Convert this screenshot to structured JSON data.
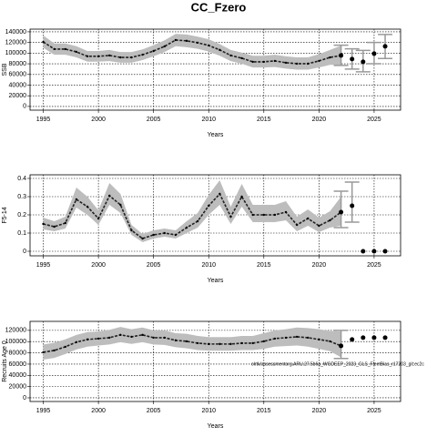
{
  "title": "CC_Fzero",
  "chart_data": [
    {
      "type": "line",
      "xlabel": "Years",
      "ylabel": "SSB",
      "xlim": [
        1993.8,
        2027.4
      ],
      "xticks": [
        1995,
        2000,
        2005,
        2010,
        2015,
        2020,
        2025
      ],
      "ylim": [
        -7000,
        145000
      ],
      "yticks": [
        0,
        20000,
        40000,
        60000,
        80000,
        100000,
        120000,
        140000
      ],
      "grid": true,
      "x": [
        1995,
        1996,
        1997,
        1998,
        1999,
        2000,
        2001,
        2002,
        2003,
        2004,
        2005,
        2006,
        2007,
        2008,
        2009,
        2010,
        2011,
        2012,
        2013,
        2014,
        2015,
        2016,
        2017,
        2018,
        2019,
        2020,
        2021,
        2022
      ],
      "values": [
        121000,
        107600,
        107600,
        102400,
        94000,
        94000,
        95600,
        92000,
        92000,
        97000,
        104000,
        112700,
        124600,
        123000,
        119500,
        114400,
        106000,
        95600,
        90500,
        83700,
        83700,
        85400,
        82000,
        80200,
        80200,
        85400,
        92000,
        95600
      ],
      "lower": [
        110000,
        97000,
        97000,
        92000,
        84000,
        84000,
        85000,
        82000,
        82000,
        87000,
        94000,
        102000,
        113000,
        111000,
        108000,
        103000,
        95000,
        85000,
        80000,
        73000,
        73000,
        74000,
        71000,
        69000,
        69000,
        73000,
        78000,
        78000
      ],
      "upper": [
        133000,
        118000,
        118000,
        113000,
        104000,
        104000,
        106000,
        102000,
        102000,
        107000,
        115000,
        124000,
        136000,
        135000,
        131000,
        126000,
        117000,
        106000,
        101000,
        95000,
        95000,
        97000,
        94000,
        92000,
        92000,
        98000,
        106000,
        114000
      ],
      "projection": {
        "x": [
          2022,
          2023,
          2024,
          2025,
          2026
        ],
        "values": [
          95600,
          88800,
          83700,
          99000,
          112700
        ],
        "lower": [
          77000,
          70000,
          65000,
          80000,
          90000
        ],
        "upper": [
          115000,
          108000,
          105000,
          120000,
          135000
        ]
      }
    },
    {
      "type": "line",
      "xlabel": "Years",
      "ylabel": "F5-14",
      "xlim": [
        1993.8,
        2027.4
      ],
      "xticks": [
        1995,
        2000,
        2005,
        2010,
        2015,
        2020,
        2025
      ],
      "ylim": [
        -0.025,
        0.42
      ],
      "yticks": [
        0,
        0.1,
        0.2,
        0.3,
        0.4
      ],
      "grid": true,
      "x": [
        1995,
        1996,
        1997,
        1998,
        1999,
        2000,
        2001,
        2002,
        2003,
        2004,
        2005,
        2006,
        2007,
        2008,
        2009,
        2010,
        2011,
        2012,
        2013,
        2014,
        2015,
        2016,
        2017,
        2018,
        2019,
        2020,
        2021,
        2022
      ],
      "values": [
        0.15,
        0.135,
        0.155,
        0.285,
        0.245,
        0.18,
        0.305,
        0.255,
        0.115,
        0.07,
        0.09,
        0.1,
        0.09,
        0.13,
        0.165,
        0.25,
        0.315,
        0.19,
        0.3,
        0.2,
        0.2,
        0.2,
        0.215,
        0.145,
        0.18,
        0.14,
        0.17,
        0.215
      ],
      "lower": [
        0.12,
        0.11,
        0.125,
        0.24,
        0.2,
        0.145,
        0.255,
        0.21,
        0.09,
        0.05,
        0.07,
        0.08,
        0.07,
        0.1,
        0.13,
        0.2,
        0.255,
        0.15,
        0.245,
        0.16,
        0.16,
        0.16,
        0.17,
        0.11,
        0.14,
        0.105,
        0.13,
        0.14
      ],
      "upper": [
        0.185,
        0.165,
        0.19,
        0.35,
        0.3,
        0.225,
        0.375,
        0.315,
        0.145,
        0.095,
        0.115,
        0.125,
        0.115,
        0.165,
        0.21,
        0.31,
        0.39,
        0.245,
        0.37,
        0.255,
        0.255,
        0.255,
        0.275,
        0.19,
        0.23,
        0.185,
        0.22,
        0.3
      ],
      "projection": {
        "x": [
          2022,
          2023,
          2024,
          2025,
          2026
        ],
        "values": [
          0.215,
          0.25,
          0,
          0,
          0
        ],
        "lower": [
          0.13,
          0.16,
          null,
          null,
          null
        ],
        "upper": [
          0.33,
          0.38,
          null,
          null,
          null
        ]
      }
    },
    {
      "type": "line",
      "xlabel": "Years",
      "ylabel": "Recruits Age 0",
      "annotation": "olrtk/assessmentorg.ARU.27.5b6a_WGDEEP_2023_GLS_FleetBias_r17203_git:ec2c",
      "xlim": [
        1993.8,
        2027.4
      ],
      "xticks": [
        1995,
        2000,
        2005,
        2010,
        2015,
        2020,
        2025
      ],
      "ylim": [
        -6500,
        136000
      ],
      "yticks": [
        0,
        20000,
        40000,
        60000,
        80000,
        100000,
        120000
      ],
      "grid": true,
      "x": [
        1995,
        1996,
        1997,
        1998,
        1999,
        2000,
        2001,
        2002,
        2003,
        2004,
        2005,
        2006,
        2007,
        2008,
        2009,
        2010,
        2011,
        2012,
        2013,
        2014,
        2015,
        2016,
        2017,
        2018,
        2019,
        2020,
        2021,
        2022
      ],
      "values": [
        81000,
        84300,
        90800,
        99000,
        103800,
        105400,
        107000,
        112000,
        108600,
        112000,
        107000,
        107000,
        102200,
        100500,
        97300,
        95700,
        95700,
        95700,
        97300,
        97300,
        100500,
        105400,
        107000,
        108600,
        107000,
        103800,
        100500,
        92400
      ],
      "lower": [
        68000,
        71000,
        78000,
        86000,
        91000,
        93000,
        95000,
        99000,
        96000,
        99000,
        95000,
        94000,
        90000,
        88000,
        85000,
        84000,
        84000,
        84000,
        85000,
        85000,
        87000,
        91000,
        92000,
        93000,
        91000,
        87000,
        83000,
        72000
      ],
      "upper": [
        95000,
        98000,
        104000,
        112000,
        117000,
        118000,
        121000,
        126000,
        122000,
        125000,
        120000,
        120000,
        115000,
        114000,
        110000,
        108000,
        108000,
        108000,
        110000,
        110000,
        115000,
        120000,
        122000,
        125000,
        124000,
        122000,
        119000,
        118000
      ],
      "projection": {
        "x": [
          2022,
          2023,
          2024,
          2025,
          2026
        ],
        "values": [
          92400,
          103800,
          107000,
          107000,
          107000
        ],
        "lower": [
          70000,
          null,
          null,
          null,
          null
        ],
        "upper": [
          120000,
          null,
          null,
          null,
          null
        ]
      }
    }
  ]
}
